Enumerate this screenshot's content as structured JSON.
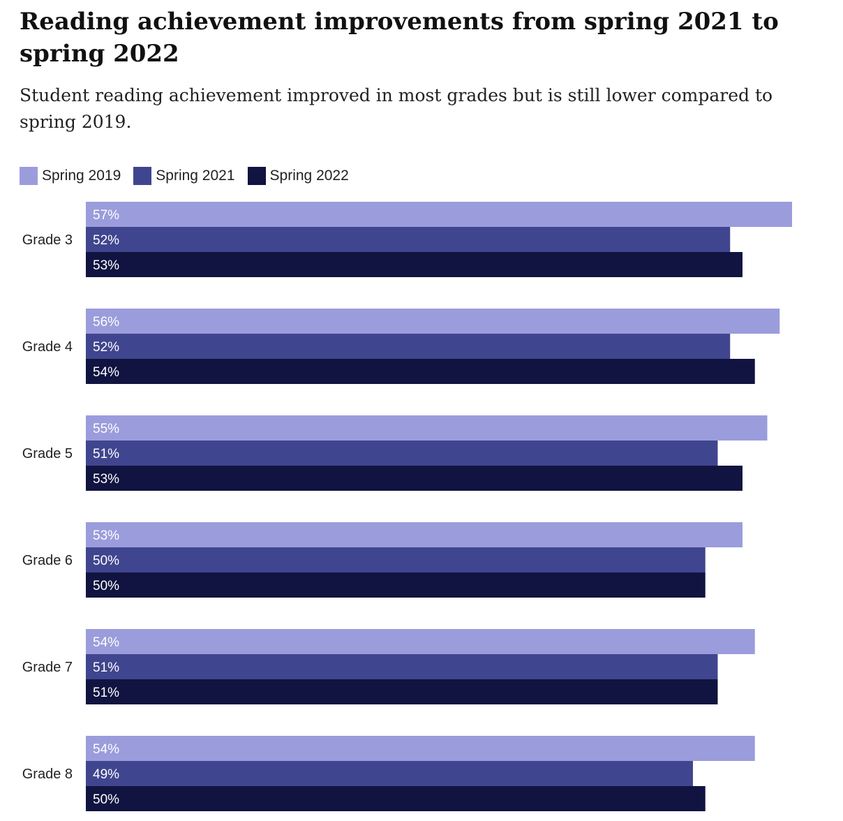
{
  "chart_data": {
    "type": "bar",
    "orientation": "horizontal",
    "title": "Reading achievement improvements from spring 2021 to spring 2022",
    "subtitle": "Student reading achievement improved in most grades but is still lower compared to spring 2019.",
    "categories": [
      "Grade 3",
      "Grade 4",
      "Grade 5",
      "Grade 6",
      "Grade 7",
      "Grade 8"
    ],
    "series": [
      {
        "name": "Spring 2019",
        "color": "#9b9cdc",
        "values": [
          57,
          56,
          55,
          53,
          54,
          54
        ]
      },
      {
        "name": "Spring 2021",
        "color": "#40458f",
        "values": [
          52,
          52,
          51,
          50,
          51,
          49
        ]
      },
      {
        "name": "Spring 2022",
        "color": "#111440",
        "values": [
          53,
          54,
          53,
          50,
          51,
          50
        ]
      }
    ],
    "value_suffix": "%",
    "xlim": [
      0,
      57
    ],
    "grid": false,
    "legend_position": "top-left",
    "data_labels": true
  }
}
